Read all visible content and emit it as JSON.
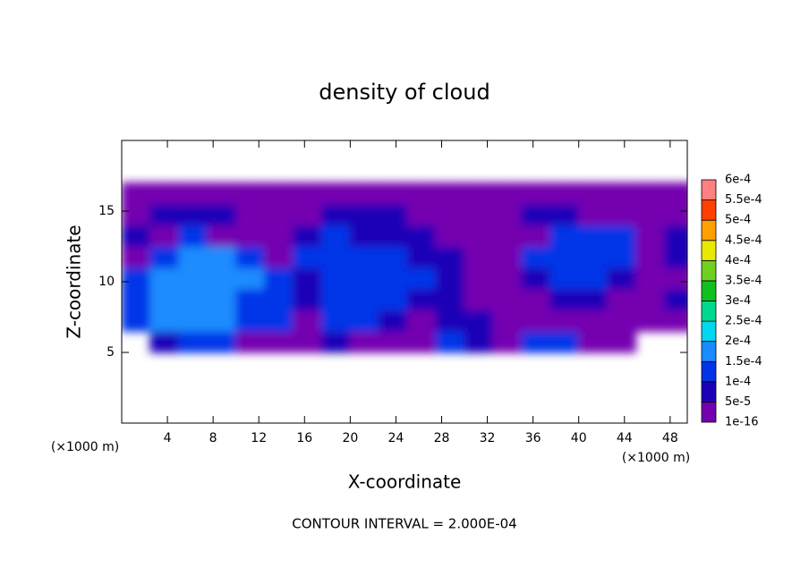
{
  "chart_data": {
    "type": "contour",
    "title": "density of cloud",
    "x_label": "X-coordinate",
    "y_label": "Z-coordinate",
    "x_unit": "(×1000 m)",
    "y_unit": "(×1000 m)",
    "footer": "CONTOUR INTERVAL = 2.000E-04",
    "xlim": [
      0,
      49.5
    ],
    "ylim": [
      0,
      20
    ],
    "xticks": [
      4,
      8,
      12,
      16,
      20,
      24,
      28,
      32,
      36,
      40,
      44,
      48
    ],
    "yticks": [
      5,
      10,
      15
    ],
    "x": [
      1.25,
      3.75,
      6.25,
      8.75,
      11.25,
      13.75,
      16.25,
      18.75,
      21.25,
      23.75,
      26.25,
      28.75,
      31.25,
      33.75,
      36.25,
      38.75,
      41.25,
      43.75,
      46.25,
      48.75
    ],
    "y": [
      5.75,
      7.25,
      8.75,
      10.25,
      11.75,
      13.25,
      14.75,
      16.25
    ],
    "values": [
      [
        null,
        7e-05,
        0.00012,
        0.00012,
        2e-05,
        2e-05,
        2e-05,
        7e-05,
        2e-05,
        2e-05,
        2e-05,
        0.00012,
        7e-05,
        2e-05,
        0.00012,
        0.00012,
        2e-05,
        2e-05,
        null,
        null
      ],
      [
        0.00012,
        0.00017,
        0.00017,
        0.00017,
        0.00012,
        0.00012,
        2e-05,
        0.00012,
        0.00012,
        7e-05,
        2e-05,
        7e-05,
        7e-05,
        2e-05,
        2e-05,
        2e-05,
        2e-05,
        2e-05,
        2e-05,
        2e-05
      ],
      [
        0.00012,
        0.00017,
        0.00017,
        0.00017,
        0.00012,
        0.00012,
        7e-05,
        0.00012,
        0.00012,
        0.00012,
        7e-05,
        7e-05,
        2e-05,
        2e-05,
        2e-05,
        7e-05,
        7e-05,
        2e-05,
        2e-05,
        7e-05
      ],
      [
        0.00012,
        0.00017,
        0.00017,
        0.00017,
        0.00017,
        0.00012,
        7e-05,
        0.00012,
        0.00012,
        0.00012,
        0.00012,
        7e-05,
        2e-05,
        2e-05,
        7e-05,
        0.00012,
        0.00012,
        7e-05,
        2e-05,
        2e-05
      ],
      [
        2e-05,
        0.00012,
        0.00017,
        0.00017,
        0.00012,
        2e-05,
        0.00012,
        0.00012,
        0.00012,
        0.00012,
        7e-05,
        7e-05,
        2e-05,
        2e-05,
        0.00012,
        0.00012,
        0.00012,
        0.00012,
        2e-05,
        7e-05
      ],
      [
        7e-05,
        2e-05,
        0.00012,
        2e-05,
        2e-05,
        2e-05,
        7e-05,
        0.00012,
        7e-05,
        7e-05,
        7e-05,
        2e-05,
        2e-05,
        2e-05,
        2e-05,
        0.00012,
        0.00012,
        0.00012,
        2e-05,
        7e-05
      ],
      [
        2e-05,
        7e-05,
        7e-05,
        7e-05,
        2e-05,
        2e-05,
        2e-05,
        7e-05,
        7e-05,
        7e-05,
        2e-05,
        2e-05,
        2e-05,
        2e-05,
        7e-05,
        7e-05,
        2e-05,
        2e-05,
        2e-05,
        2e-05
      ],
      [
        2e-05,
        2e-05,
        2e-05,
        2e-05,
        2e-05,
        2e-05,
        2e-05,
        2e-05,
        2e-05,
        2e-05,
        2e-05,
        2e-05,
        2e-05,
        2e-05,
        2e-05,
        2e-05,
        2e-05,
        2e-05,
        2e-05,
        2e-05
      ]
    ],
    "colorbar": {
      "ticks": [
        {
          "value": 1e-16,
          "label": "1e-16"
        },
        {
          "value": 5e-05,
          "label": "5e-5"
        },
        {
          "value": 0.0001,
          "label": "1e-4"
        },
        {
          "value": 0.00015,
          "label": "1.5e-4"
        },
        {
          "value": 0.0002,
          "label": "2e-4"
        },
        {
          "value": 0.00025,
          "label": "2.5e-4"
        },
        {
          "value": 0.0003,
          "label": "3e-4"
        },
        {
          "value": 0.00035,
          "label": "3.5e-4"
        },
        {
          "value": 0.0004,
          "label": "4e-4"
        },
        {
          "value": 0.00045,
          "label": "4.5e-4"
        },
        {
          "value": 0.0005,
          "label": "5e-4"
        },
        {
          "value": 0.00055,
          "label": "5.5e-4"
        },
        {
          "value": 0.0006,
          "label": "6e-4"
        }
      ],
      "colors": [
        "#7400b0",
        "#1c00b8",
        "#0034e8",
        "#1a8cff",
        "#00d8f0",
        "#00d890",
        "#10c020",
        "#70d020",
        "#e8e800",
        "#ffa000",
        "#ff4000",
        "#ff8080"
      ]
    }
  }
}
